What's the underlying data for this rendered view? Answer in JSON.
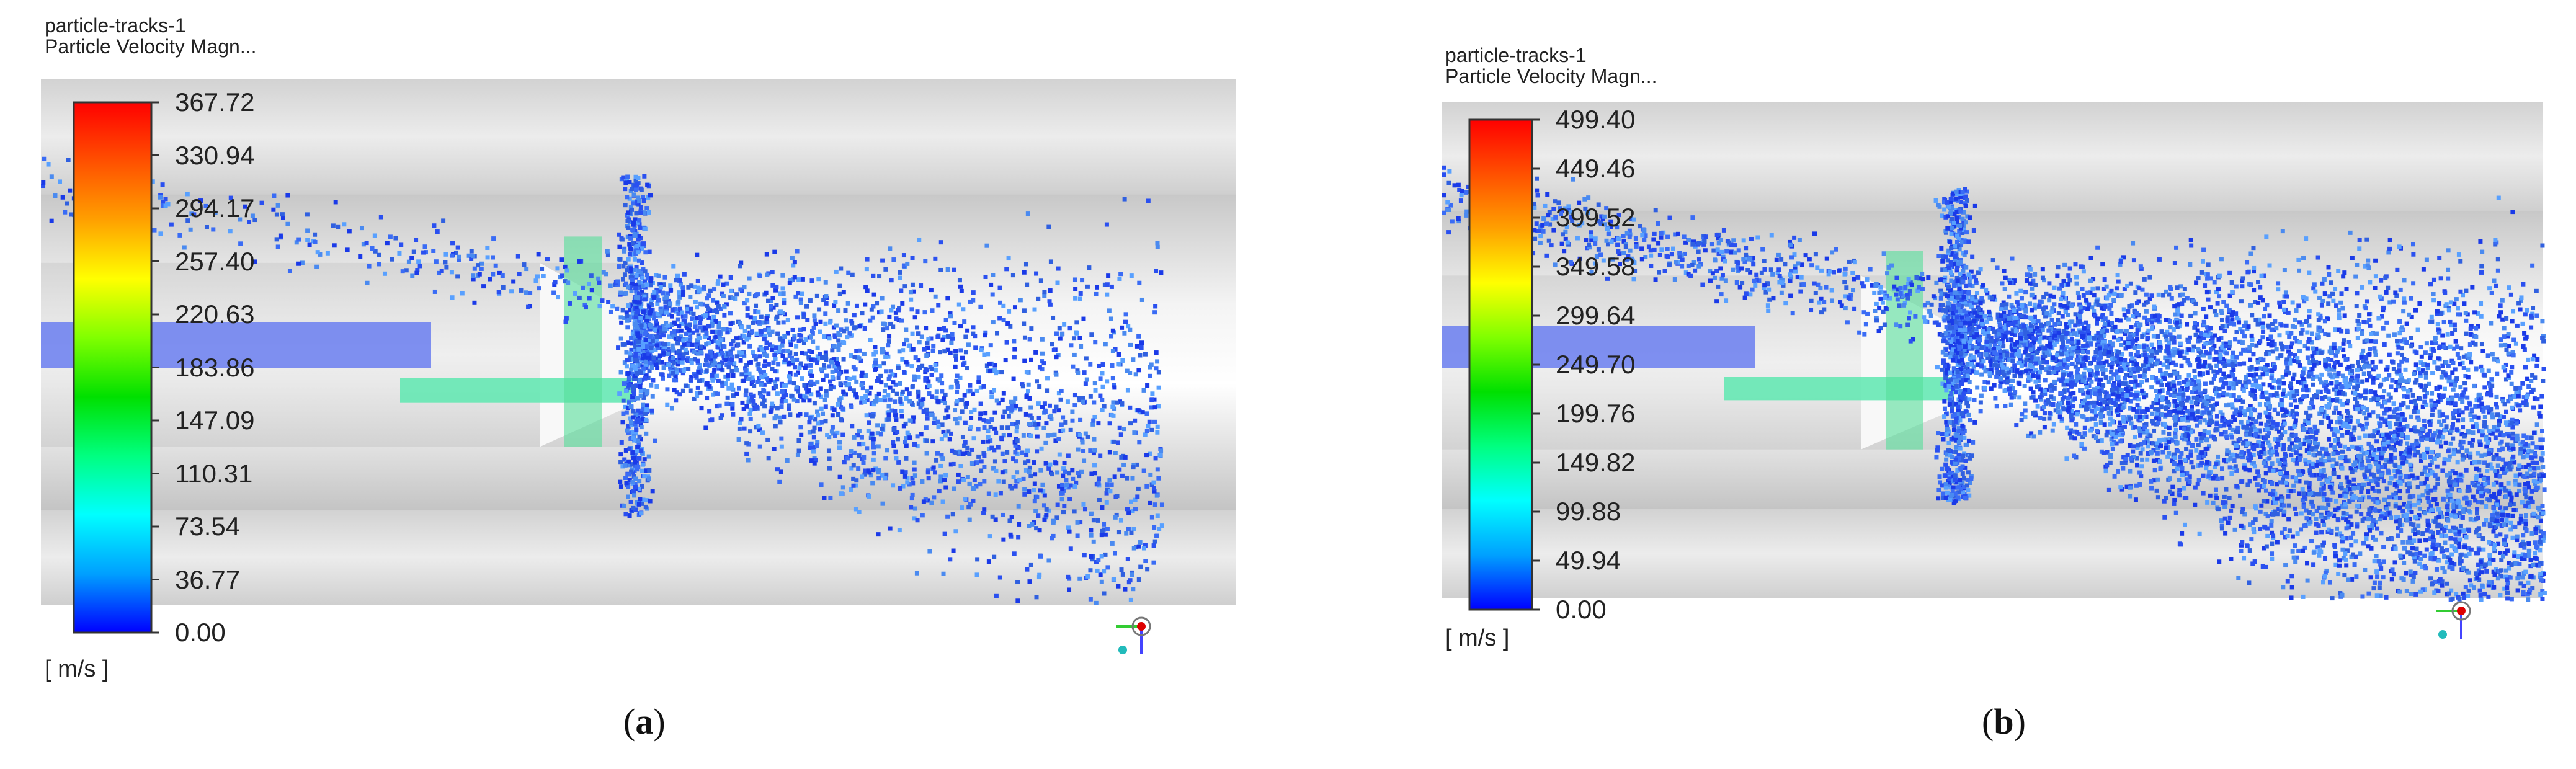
{
  "panels": [
    {
      "id": "a",
      "title_line1": "particle-tracks-1",
      "title_line2": "Particle Velocity Magn...",
      "colorbar_ticks": [
        "367.72",
        "330.94",
        "294.17",
        "257.40",
        "220.63",
        "183.86",
        "147.09",
        "110.31",
        "73.54",
        "36.77",
        "0.00"
      ],
      "unit": "[ m/s ]",
      "caption_open": "(",
      "caption_letter": "a",
      "caption_close": ")",
      "range": [
        0,
        367.72
      ]
    },
    {
      "id": "b",
      "title_line1": "particle-tracks-1",
      "title_line2": "Particle Velocity Magn...",
      "colorbar_ticks": [
        "499.40",
        "449.46",
        "399.52",
        "349.58",
        "299.64",
        "249.70",
        "199.76",
        "149.82",
        "99.88",
        "49.94",
        "0.00"
      ],
      "unit": "[ m/s ]",
      "caption_open": "(",
      "caption_letter": "b",
      "caption_close": ")",
      "range": [
        0,
        499.4
      ]
    }
  ],
  "colormap": [
    "#0000ff",
    "#00a0ff",
    "#00ffff",
    "#00ff80",
    "#00e000",
    "#80ff00",
    "#ffff00",
    "#ffa000",
    "#ff5000",
    "#ff0000"
  ],
  "icons": [
    "axis-triad-icon"
  ]
}
